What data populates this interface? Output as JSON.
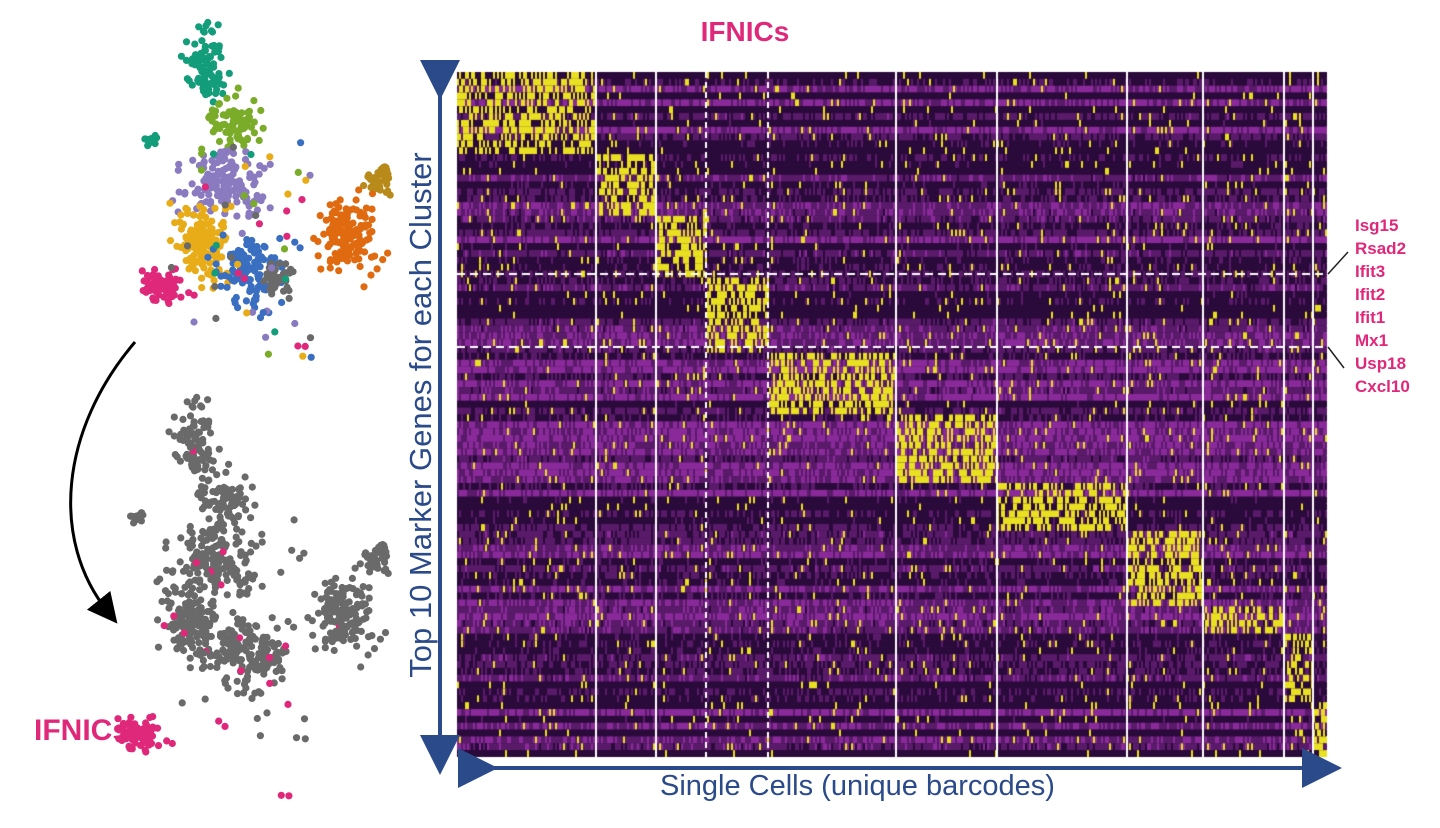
{
  "chart_data": [
    {
      "type": "heatmap",
      "title": "IFNICs",
      "ylabel": "Top 10 Marker Genes for each Cluster",
      "xlabel": "Single Cells (unique barcodes)",
      "colorscale": [
        "#2a0a3a",
        "#8a2a9a",
        "#f0f020"
      ],
      "highlighted_cluster_genes": [
        "Isg15",
        "Rsad2",
        "Ifit3",
        "Ifit2",
        "Ifit1",
        "Mx1",
        "Usp18",
        "Cxcl10"
      ],
      "highlight_color": "#e0287a"
    },
    {
      "type": "scatter",
      "description_label": "",
      "cluster_colors": [
        "#139d7a",
        "#7aac2a",
        "#8a7ac0",
        "#e8ac18",
        "#3a6ec0",
        "#e0287a",
        "#6a6a6a",
        "#e06a10",
        "#b88a1a"
      ]
    },
    {
      "type": "scatter",
      "annotation": "IFNICs",
      "colors": {
        "highlight": "#e0287a",
        "other": "#6a6a6a"
      }
    }
  ],
  "axis_color": "#2a4a8a"
}
